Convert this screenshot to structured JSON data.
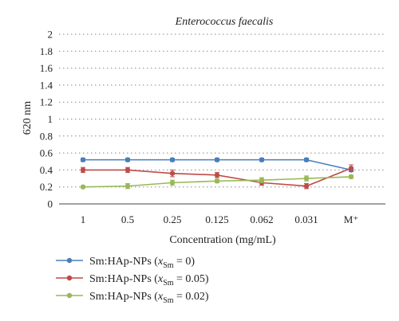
{
  "chart_data": {
    "type": "line",
    "title": "Enterococcus faecalis",
    "xlabel": "Concentration (mg/mL)",
    "ylabel": "620 nm",
    "categories": [
      "1",
      "0.5",
      "0.25",
      "0.125",
      "0.062",
      "0.031",
      "M⁺"
    ],
    "ylim": [
      0,
      2
    ],
    "yticks": [
      "0",
      "0.2",
      "0.4",
      "0.6",
      "0.8",
      "1",
      "1.2",
      "1.4",
      "1.6",
      "1.8",
      "2"
    ],
    "grid": true,
    "legend_position": "bottom-left",
    "series": [
      {
        "name": "Sm:HAp-NPs (x_Sm = 0)",
        "legend_prefix": "Sm:HAp-NPs (",
        "legend_var": "x",
        "legend_sub": "Sm",
        "legend_suffix": " = 0)",
        "color": "#4a7ebb",
        "values": [
          0.52,
          0.52,
          0.52,
          0.52,
          0.52,
          0.52,
          0.4
        ],
        "errors": [
          0.02,
          0.02,
          0.02,
          0.02,
          0.02,
          0.02,
          0.02
        ]
      },
      {
        "name": "Sm:HAp-NPs (x_Sm = 0.05)",
        "legend_prefix": "Sm:HAp-NPs (",
        "legend_var": "x",
        "legend_sub": "Sm",
        "legend_suffix": " = 0.05)",
        "color": "#be4b48",
        "values": [
          0.4,
          0.4,
          0.36,
          0.34,
          0.25,
          0.21,
          0.42
        ],
        "errors": [
          0.03,
          0.03,
          0.04,
          0.03,
          0.03,
          0.03,
          0.04
        ]
      },
      {
        "name": "Sm:HAp-NPs (x_Sm = 0.02)",
        "legend_prefix": "Sm:HAp-NPs (",
        "legend_var": "x",
        "legend_sub": "Sm",
        "legend_suffix": " = 0.02)",
        "color": "#98b954",
        "values": [
          0.2,
          0.21,
          0.25,
          0.27,
          0.28,
          0.3,
          0.32
        ],
        "errors": [
          0.01,
          0.03,
          0.03,
          0.02,
          0.03,
          0.03,
          0.02
        ]
      }
    ]
  }
}
